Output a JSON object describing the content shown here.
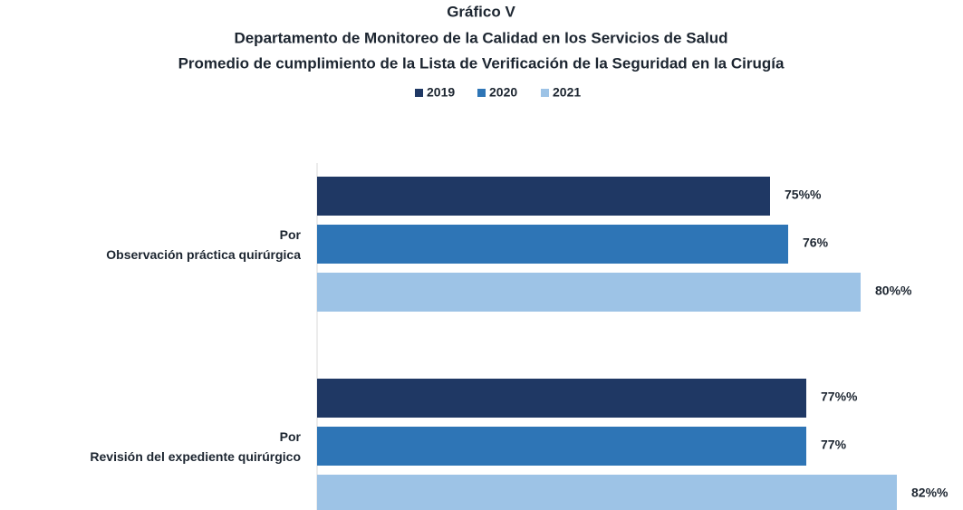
{
  "chart_data": {
    "type": "hbar",
    "title": "Gráfico V",
    "subtitle": [
      "Departamento de Monitoreo de la Calidad en los Servicios de Salud",
      "Promedio de cumplimiento de la Lista de Verificación de la Seguridad en la Cirugía"
    ],
    "categories": [
      "Por\nObservación práctica quirúrgica",
      "Por\nRevisión del expediente quirúrgico"
    ],
    "series": [
      {
        "name": "2019",
        "color": "#1f3864",
        "values": [
          75,
          77
        ],
        "value_labels": [
          "75%%",
          "77%%"
        ]
      },
      {
        "name": "2020",
        "color": "#2e75b6",
        "values": [
          76,
          77
        ],
        "value_labels": [
          "76%",
          "77%"
        ]
      },
      {
        "name": "2021",
        "color": "#9dc3e6",
        "values": [
          80,
          82
        ],
        "value_labels": [
          "80%%",
          "82%%"
        ]
      }
    ],
    "xlim": [
      50,
      85
    ],
    "legend": "top"
  }
}
